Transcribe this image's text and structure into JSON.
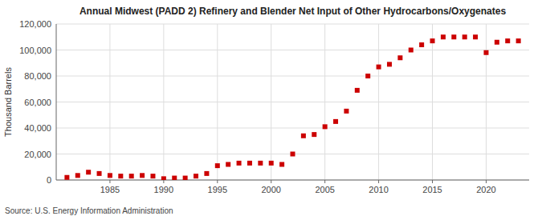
{
  "chart_data": {
    "type": "scatter",
    "title": "Annual Midwest (PADD 2) Refinery and Blender Net Input of Other Hydrocarbons/Oxygenates",
    "ylabel": "Thousand Barrels",
    "source": "Source: U.S. Energy Information Administration",
    "color": "#cc0000",
    "marker": "square",
    "grid": true,
    "x": [
      1981,
      1982,
      1983,
      1984,
      1985,
      1986,
      1987,
      1988,
      1989,
      1990,
      1991,
      1992,
      1993,
      1994,
      1995,
      1996,
      1997,
      1998,
      1999,
      2000,
      2001,
      2002,
      2003,
      2004,
      2005,
      2006,
      2007,
      2008,
      2009,
      2010,
      2011,
      2012,
      2013,
      2014,
      2015,
      2016,
      2017,
      2018,
      2019,
      2020,
      2021,
      2022,
      2023
    ],
    "values": [
      2000,
      3500,
      6000,
      5000,
      3500,
      3000,
      3000,
      3500,
      3000,
      1000,
      1500,
      1500,
      3000,
      5000,
      11000,
      12000,
      13000,
      13000,
      13000,
      13000,
      12000,
      20000,
      34000,
      35000,
      41000,
      45000,
      53000,
      69000,
      80000,
      87000,
      89000,
      94000,
      100000,
      104000,
      107000,
      110000,
      110000,
      110000,
      110000,
      98000,
      106000,
      107000,
      107000
    ],
    "xlim": [
      1980,
      2024
    ],
    "ylim": [
      0,
      120000
    ],
    "xticks": [
      1985,
      1990,
      1995,
      2000,
      2005,
      2010,
      2015,
      2020
    ],
    "yticks": [
      0,
      {
        "value": 20000,
        "label": "20,000"
      },
      {
        "value": 40000,
        "label": "40,000"
      },
      {
        "value": 60000,
        "label": "60,000"
      },
      {
        "value": 80000,
        "label": "80,000"
      },
      {
        "value": 100000,
        "label": "100,000"
      },
      {
        "value": 120000,
        "label": "120,000"
      }
    ]
  }
}
